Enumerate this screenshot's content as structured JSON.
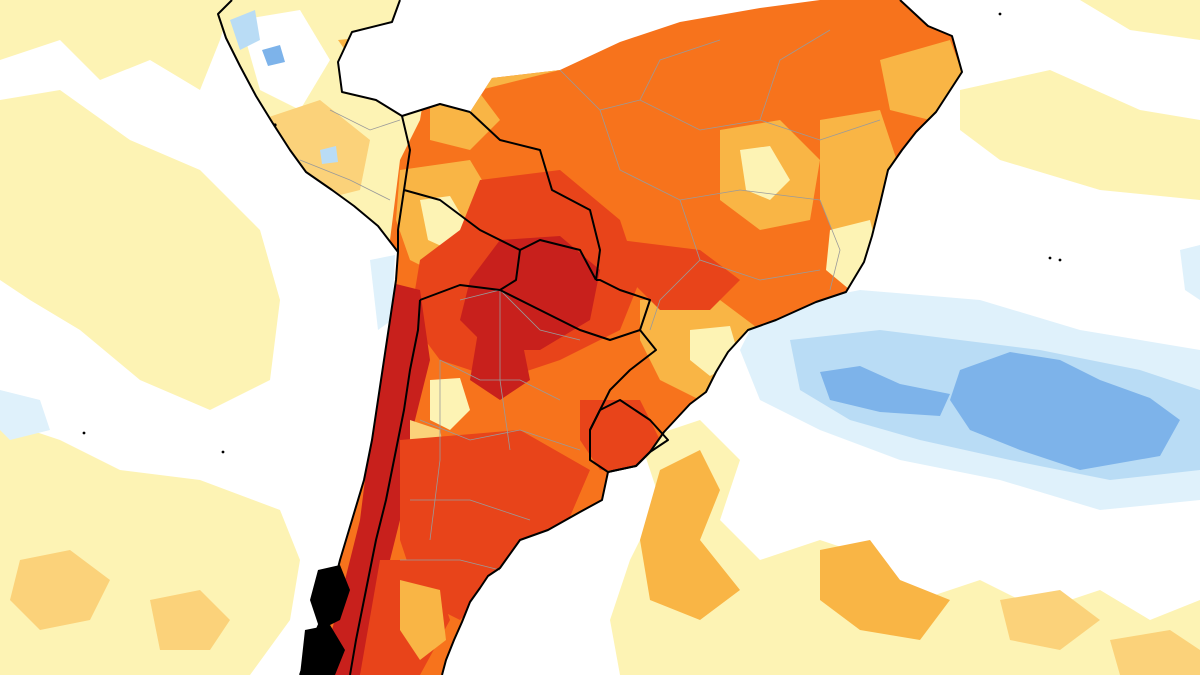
{
  "map": {
    "kind": "temperature-anomaly-map",
    "region": "South America",
    "color_scale": {
      "strong_cool": "#7db3ea",
      "cool": "#b9dcf5",
      "slight_cool": "#dff1fb",
      "neutral": "#ffffff",
      "slight_warm": "#fdf3b4",
      "warm": "#fbd27a",
      "moderate_warm": "#f9b545",
      "hot": "#f7731c",
      "very_hot": "#e8441a",
      "extreme_hot": "#c8201c",
      "border_country": "#000000",
      "border_province": "#9a9a9a"
    },
    "features": [
      "ocean-field",
      "continent-anomaly",
      "country-borders",
      "province-borders",
      "cool-anomaly-south-atlantic",
      "warm-anomaly-south-atlantic",
      "warm-anomaly-pacific"
    ]
  }
}
